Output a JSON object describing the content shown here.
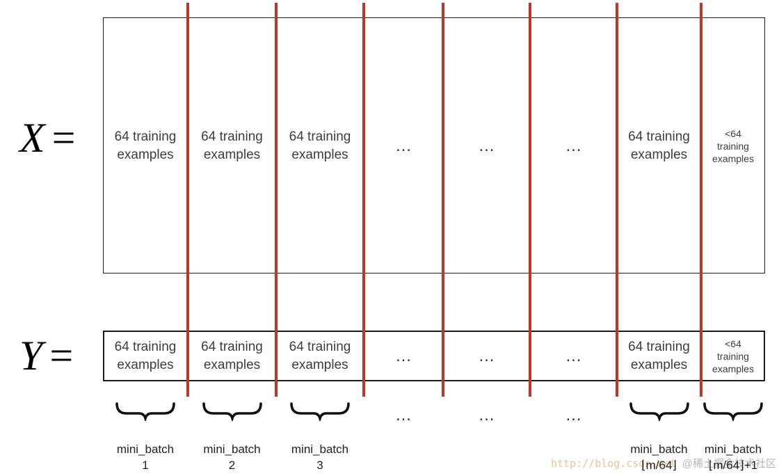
{
  "diagram": {
    "x_label": {
      "variable": "X",
      "equals": "="
    },
    "y_label": {
      "variable": "Y",
      "equals": "="
    }
  },
  "columns": [
    {
      "cell_lines": [
        "64 training",
        "examples"
      ],
      "size": "normal",
      "underbrace": true,
      "batch_label_lines": [
        "mini_batch",
        "1"
      ]
    },
    {
      "cell_lines": [
        "64 training",
        "examples"
      ],
      "size": "normal",
      "underbrace": true,
      "batch_label_lines": [
        "mini_batch",
        "2"
      ]
    },
    {
      "cell_lines": [
        "64 training",
        "examples"
      ],
      "size": "normal",
      "underbrace": true,
      "batch_label_lines": [
        "mini_batch",
        "3"
      ]
    },
    {
      "cell_lines": [
        "…"
      ],
      "size": "dots",
      "underbrace": false,
      "gap_dots": "…"
    },
    {
      "cell_lines": [
        "…"
      ],
      "size": "dots",
      "underbrace": false,
      "gap_dots": "…"
    },
    {
      "cell_lines": [
        "…"
      ],
      "size": "dots",
      "underbrace": false,
      "gap_dots": "…"
    },
    {
      "cell_lines": [
        "64 training",
        "examples"
      ],
      "size": "normal",
      "underbrace": true,
      "batch_label_lines": [
        "mini_batch",
        "⌊m/64⌋"
      ]
    },
    {
      "cell_lines": [
        "<64",
        "training",
        "examples"
      ],
      "size": "small",
      "underbrace": true,
      "batch_label_lines": [
        "mini_batch",
        "⌊m/64⌋+1"
      ]
    }
  ],
  "watermark": {
    "url_part": "http://blog.csdn.net",
    "site_part": "@稀土掘金技术社区"
  },
  "colors": {
    "divider": "#bf3627",
    "brace": "#111111"
  }
}
